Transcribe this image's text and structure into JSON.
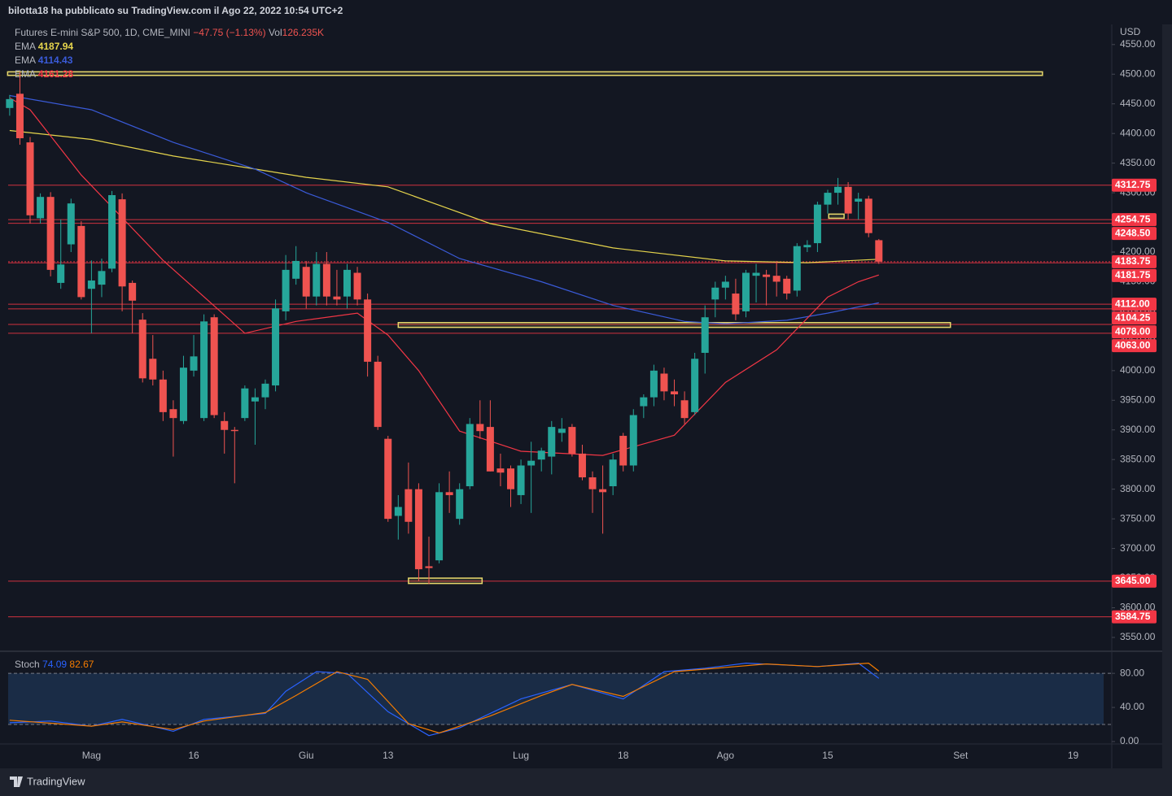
{
  "header": {
    "title": "bilotta18 ha pubblicato su TradingView.com il Ago 22, 2022 10:54 UTC+2"
  },
  "footer": {
    "brand": "TradingView"
  },
  "chart_data": [
    {
      "type": "candlestick",
      "title": "Futures E-mini S&P 500, 1D, CME_MINI",
      "change": "−47.75 (−1.13%)",
      "volume_label": "Vol",
      "volume": "126.235K",
      "currency": "USD",
      "up_color": "#26a69a",
      "down_color": "#ef5350",
      "categories": [
        null,
        null,
        null,
        null,
        null,
        null,
        null,
        null,
        null,
        null,
        null,
        null,
        null,
        null,
        null,
        null,
        null,
        null,
        null,
        null,
        null,
        null,
        null,
        null,
        null,
        null,
        null,
        null,
        null,
        null,
        null,
        null,
        null,
        null,
        null,
        null,
        null,
        null,
        null,
        null,
        null,
        null,
        null,
        null,
        null,
        null,
        null,
        null,
        null,
        null,
        null,
        null,
        null,
        null,
        null,
        null,
        null,
        null,
        null,
        null,
        null,
        null,
        null,
        null,
        null,
        null,
        null,
        null,
        null,
        null,
        null,
        null,
        null,
        null,
        null,
        null,
        null,
        null,
        null,
        null,
        null,
        null,
        null,
        null,
        null,
        null
      ],
      "open": [
        4443,
        4467,
        4385,
        4257,
        4293,
        4148,
        4213,
        4244,
        4138,
        4145,
        4172,
        4289,
        4148,
        4086,
        4020,
        3985,
        3935,
        3915,
        4000,
        3920,
        4090,
        3915,
        3900,
        3920,
        3948,
        3955,
        3975,
        4100,
        4155,
        4175,
        4125,
        4180,
        4125,
        4125,
        4165,
        4120,
        4015,
        3885,
        3755,
        3800,
        3800,
        3670,
        3680,
        3795,
        3750,
        3805,
        3910,
        3905,
        3835,
        3835,
        3790,
        3840,
        3850,
        3855,
        3895,
        3905,
        3860,
        3820,
        3800,
        3805,
        3890,
        3840,
        3940,
        3955,
        3995,
        3965,
        3950,
        3930,
        4030,
        4120,
        4140,
        4130,
        4100,
        4160,
        4162,
        4160,
        4155,
        4135,
        4208,
        4215,
        4280,
        4300,
        4310,
        4285,
        4290,
        4220
      ],
      "high": [
        4465,
        4504,
        4394,
        4299,
        4301,
        4255,
        4290,
        4252,
        4186,
        4189,
        4303,
        4299,
        4152,
        4097,
        4060,
        4000,
        3950,
        4025,
        4060,
        4095,
        4095,
        3930,
        3905,
        3975,
        3970,
        3985,
        4120,
        4195,
        4210,
        4185,
        4200,
        4200,
        4170,
        4180,
        4175,
        4130,
        4025,
        3890,
        3790,
        3845,
        3810,
        3720,
        3810,
        3830,
        3810,
        3920,
        3950,
        3950,
        3860,
        3840,
        3850,
        3880,
        3870,
        3915,
        3920,
        3910,
        3875,
        3830,
        3840,
        3860,
        3895,
        3935,
        3960,
        4010,
        4005,
        3985,
        3965,
        4030,
        4110,
        4150,
        4160,
        4155,
        4170,
        4180,
        4170,
        4185,
        4160,
        4215,
        4220,
        4285,
        4305,
        4325,
        4318,
        4300,
        4295,
        4222
      ],
      "low": [
        4430,
        4381,
        4248,
        4248,
        4159,
        4138,
        4200,
        4120,
        4063,
        4124,
        4166,
        4100,
        4063,
        3980,
        3975,
        3915,
        3855,
        3910,
        3990,
        3915,
        3920,
        3860,
        3810,
        3915,
        3875,
        3935,
        3965,
        4085,
        4145,
        4105,
        4110,
        4110,
        4110,
        4105,
        4110,
        3990,
        3900,
        3745,
        3715,
        3725,
        3645,
        3640,
        3675,
        3760,
        3740,
        3800,
        3885,
        3830,
        3805,
        3770,
        3775,
        3760,
        3830,
        3825,
        3880,
        3855,
        3815,
        3760,
        3725,
        3790,
        3830,
        3830,
        3920,
        3940,
        3950,
        3940,
        3910,
        3925,
        3995,
        4090,
        4120,
        4085,
        4090,
        4115,
        4110,
        4125,
        4120,
        4125,
        4200,
        4200,
        4265,
        4280,
        4255,
        4255,
        4225,
        4180
      ],
      "close": [
        4458,
        4392,
        4262,
        4293,
        4170,
        4179,
        4282,
        4124,
        4152,
        4168,
        4296,
        4142,
        4118,
        3987,
        3985,
        3930,
        3920,
        4005,
        4024,
        4083,
        3925,
        3900,
        3898,
        3970,
        3955,
        3978,
        4105,
        4170,
        4185,
        4125,
        4180,
        4125,
        4120,
        4170,
        4120,
        4015,
        3905,
        3750,
        3770,
        3745,
        3665,
        3667,
        3795,
        3790,
        3800,
        3910,
        3898,
        3830,
        3828,
        3800,
        3840,
        3848,
        3865,
        3905,
        3902,
        3860,
        3820,
        3800,
        3795,
        3850,
        3840,
        3925,
        3955,
        4000,
        3965,
        3960,
        3920,
        4020,
        4090,
        4140,
        4150,
        4095,
        4165,
        4165,
        4158,
        4150,
        4130,
        4210,
        4212,
        4280,
        4300,
        4310,
        4265,
        4290,
        4232,
        4183.75
      ],
      "series": [
        {
          "name": "EMA",
          "color": "#e5d44c",
          "x": [
            0,
            8,
            16,
            24,
            29,
            37,
            47,
            59,
            70,
            78,
            85
          ],
          "values": [
            4405,
            4390,
            4362,
            4340,
            4326,
            4310,
            4248,
            4207,
            4185,
            4182,
            4187.94
          ]
        },
        {
          "name": "EMA",
          "color": "#3a5bd9",
          "x": [
            0,
            8,
            16,
            24,
            29,
            37,
            44,
            52,
            59,
            66,
            70,
            76,
            80,
            85
          ],
          "values": [
            4464,
            4440,
            4385,
            4340,
            4300,
            4250,
            4189,
            4150,
            4110,
            4083,
            4079,
            4085,
            4097,
            4114.43
          ]
        },
        {
          "name": "EMA",
          "color": "#f23645",
          "x": [
            0,
            2,
            7,
            15,
            23,
            28,
            34,
            37,
            40,
            44,
            50,
            58,
            65,
            70,
            75,
            80,
            83,
            85
          ],
          "values": [
            4460,
            4440,
            4330,
            4186,
            4063,
            4083,
            4097,
            4060,
            4000,
            3898,
            3864,
            3857,
            3891,
            3980,
            4035,
            4124,
            4150,
            4161.28
          ]
        }
      ],
      "levels": [
        4312.75,
        4254.75,
        {
          "value": 4248.5,
          "label": "4248.50"
        },
        {
          "value": 4183.75,
          "label": "4183.75",
          "dotted": true
        },
        4181.75,
        {
          "value": 4112,
          "label": "4112.00"
        },
        4104.25,
        {
          "value": 4078,
          "label": "4078.00"
        },
        {
          "value": 4063,
          "label": "4063.00"
        },
        {
          "value": 3645,
          "label": "3645.00"
        },
        3584.75
      ],
      "level_color": "#f23645",
      "zones": [
        {
          "y": [
            4504,
            4498
          ],
          "x": [
            -0.2,
            101
          ]
        },
        {
          "y": [
            4081,
            4073
          ],
          "x": [
            38,
            92
          ]
        },
        {
          "y": [
            3650,
            3641
          ],
          "x": [
            39,
            46.2
          ]
        },
        {
          "y": [
            4264,
            4257
          ],
          "x": [
            80.1,
            81.6
          ]
        }
      ],
      "zone_color": "#e8d86c",
      "xlim": [
        -0.15,
        107.7
      ],
      "xticks": [
        {
          "value": 8,
          "label": "Mag"
        },
        {
          "value": 18,
          "label": "16"
        },
        {
          "value": 29,
          "label": "Giu"
        },
        {
          "value": 37,
          "label": "13"
        },
        {
          "value": 50,
          "label": "Lug"
        },
        {
          "value": 60,
          "label": "18"
        },
        {
          "value": 70,
          "label": "Ago"
        },
        {
          "value": 80,
          "label": "15"
        },
        {
          "value": 93,
          "label": "Set"
        },
        {
          "value": 104,
          "label": "19"
        }
      ],
      "ylim": [
        3528,
        4584
      ],
      "yticks": [
        {
          "value": 4550,
          "label": "4550.00"
        },
        {
          "value": 4500,
          "label": "4500.00"
        },
        {
          "value": 4450,
          "label": "4450.00"
        },
        {
          "value": 4400,
          "label": "4400.00"
        },
        {
          "value": 4350,
          "label": "4350.00"
        },
        {
          "value": 4300,
          "label": "4300.00"
        },
        {
          "value": 4250,
          "label": "4250.00"
        },
        {
          "value": 4200,
          "label": "4200.00"
        },
        {
          "value": 4150,
          "label": "4150.00"
        },
        {
          "value": 4100,
          "label": "4100.00"
        },
        {
          "value": 4050,
          "label": "4050.00"
        },
        {
          "value": 4000,
          "label": "4000.00"
        },
        {
          "value": 3950,
          "label": "3950.00"
        },
        {
          "value": 3900,
          "label": "3900.00"
        },
        {
          "value": 3850,
          "label": "3850.00"
        },
        {
          "value": 3800,
          "label": "3800.00"
        },
        {
          "value": 3750,
          "label": "3750.00"
        },
        {
          "value": 3700,
          "label": "3700.00"
        },
        {
          "value": 3650,
          "label": "3650.00"
        },
        {
          "value": 3600,
          "label": "3600.00"
        },
        {
          "value": 3550,
          "label": "3550.00"
        }
      ]
    },
    {
      "type": "line",
      "title": "Stoch",
      "series": [
        {
          "color": "#2962ff",
          "x": [
            0,
            4,
            8,
            11,
            16,
            19,
            25,
            27,
            30,
            33,
            37,
            41,
            44,
            50,
            55,
            60,
            64,
            68,
            72,
            79,
            83,
            85
          ],
          "values": [
            22,
            24,
            18,
            26,
            12,
            26,
            33,
            59,
            82,
            80,
            35,
            7,
            16,
            50,
            67,
            50,
            82,
            86,
            92,
            88,
            92,
            74.09
          ]
        },
        {
          "color": "#f57c00",
          "x": [
            0,
            8,
            11,
            16,
            19,
            25,
            28,
            32,
            35,
            39,
            42,
            47,
            52,
            55,
            60,
            65,
            71,
            74,
            79,
            84,
            85
          ],
          "values": [
            25,
            18,
            23,
            14,
            24,
            34,
            54,
            82,
            73,
            21,
            10,
            30,
            54,
            67,
            53,
            82,
            88,
            91,
            88,
            92,
            82.67
          ]
        }
      ],
      "bands": [
        20,
        80
      ],
      "band_color": "#1f3a5f",
      "ylim": [
        0,
        104
      ],
      "yticks": [
        {
          "value": 0,
          "label": "0.00"
        },
        {
          "value": 40,
          "label": "40.00"
        },
        {
          "value": 80,
          "label": "80.00"
        }
      ]
    }
  ]
}
